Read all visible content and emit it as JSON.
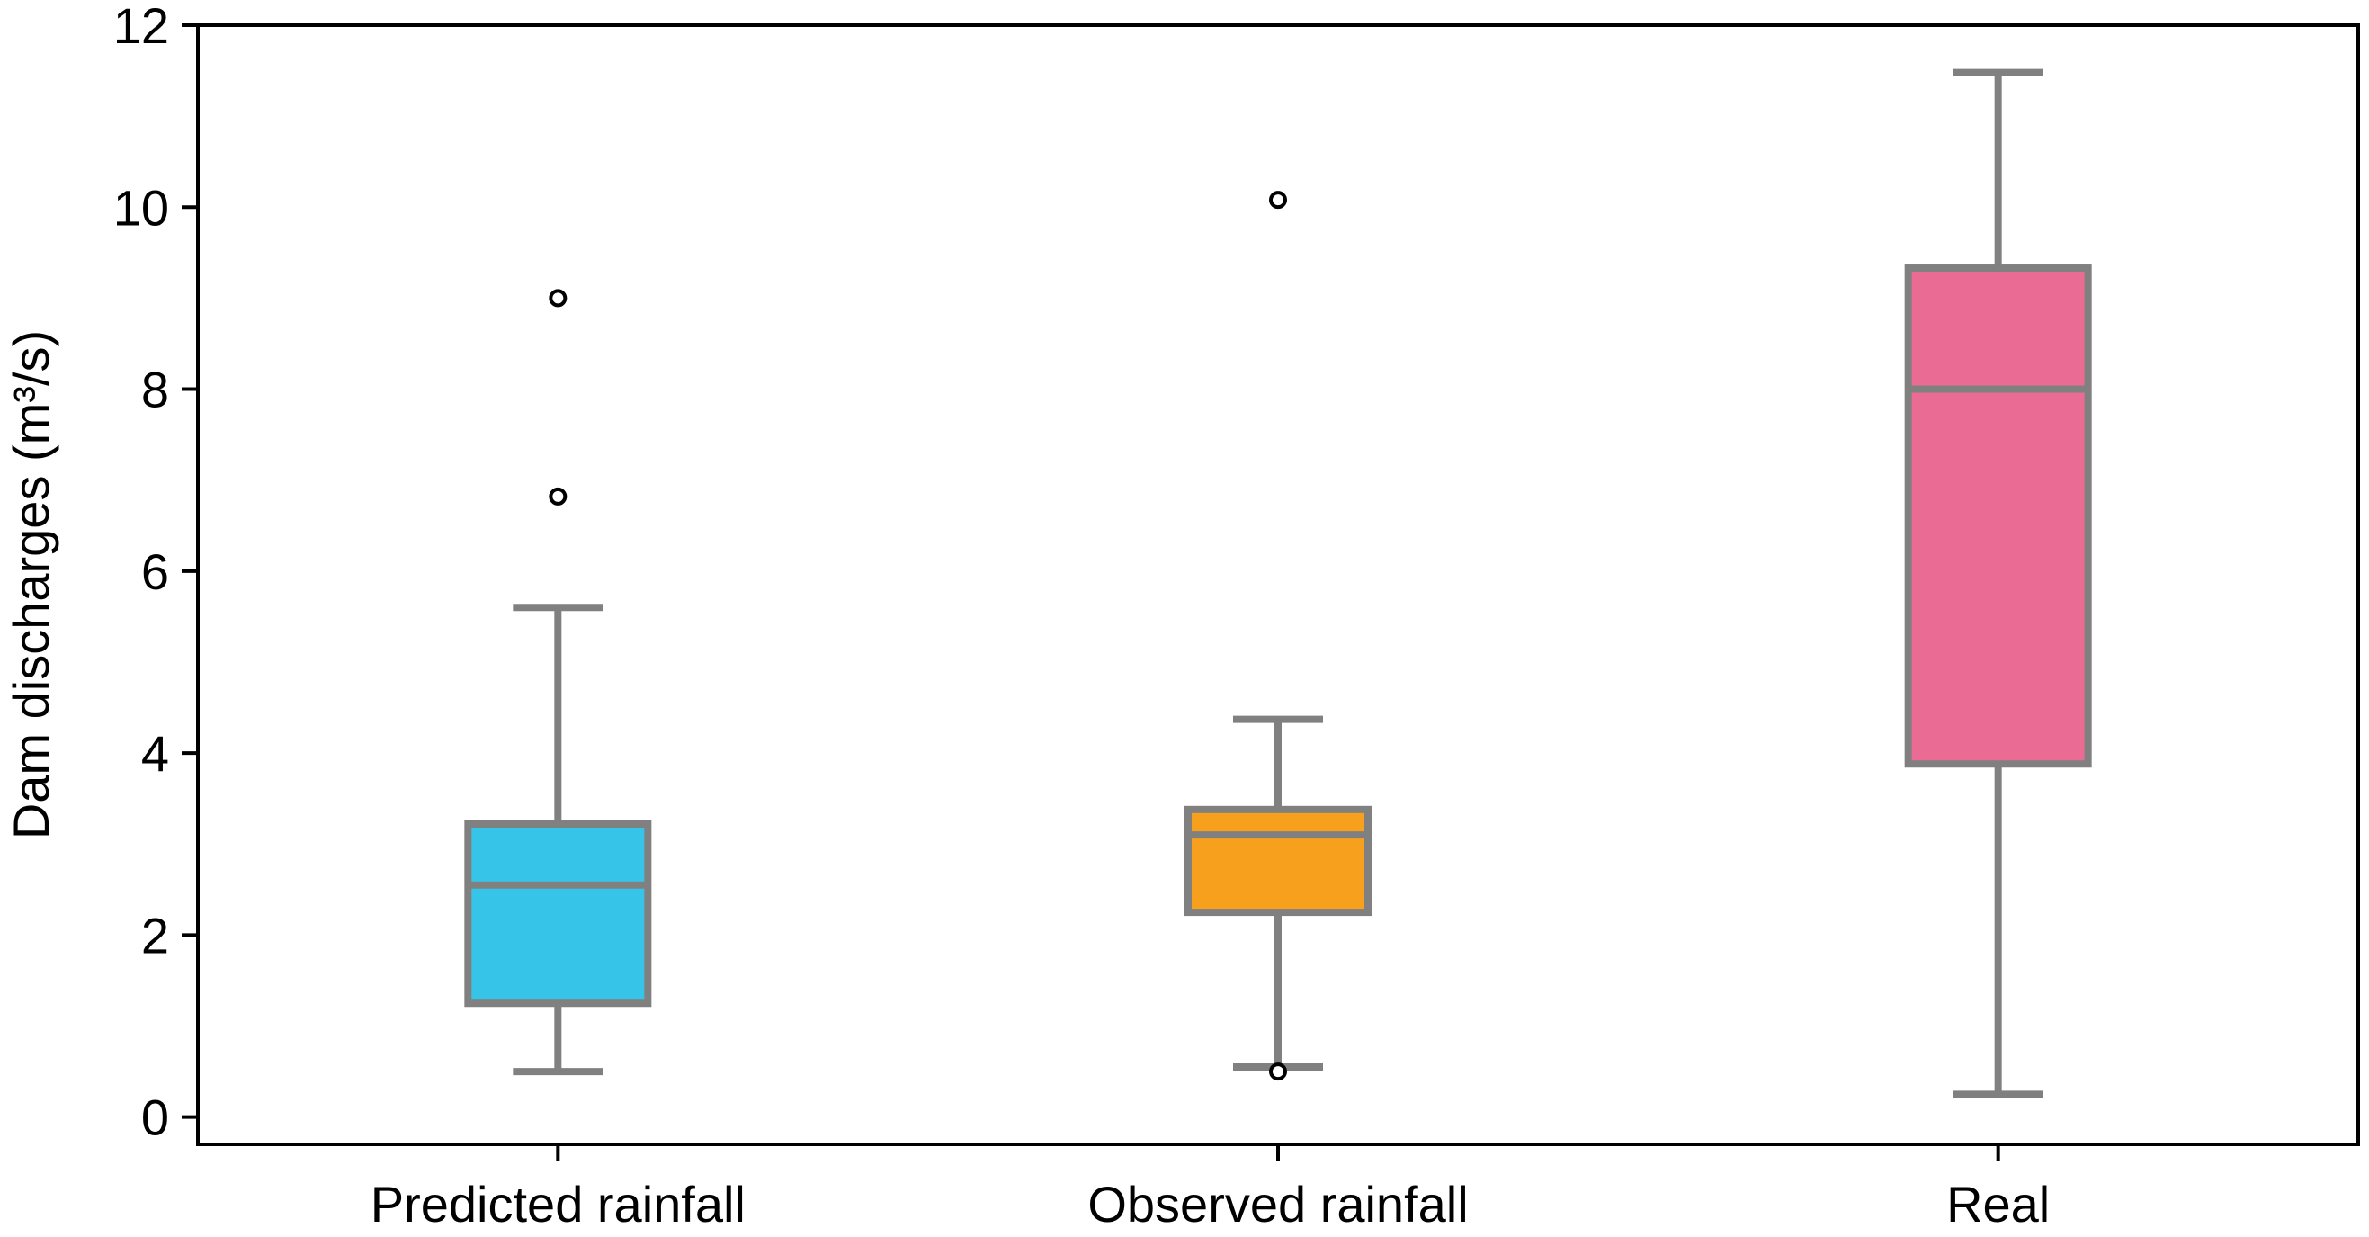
{
  "chart_data": {
    "type": "box",
    "title": "",
    "xlabel": "",
    "ylabel": "Dam discharges (m³/s)",
    "ylim": [
      -0.3,
      12.0
    ],
    "yticks": [
      0,
      2,
      4,
      6,
      8,
      10,
      12
    ],
    "grid": false,
    "categories": [
      "Predicted rainfall",
      "Observed rainfall",
      "Real"
    ],
    "boxes": [
      {
        "name": "Predicted rainfall",
        "color": "#36c5e8",
        "whisker_low": 0.5,
        "q1": 1.25,
        "median": 2.55,
        "q3": 3.22,
        "whisker_high": 5.6,
        "outliers": [
          6.82,
          9.0
        ]
      },
      {
        "name": "Observed rainfall",
        "color": "#f7a01e",
        "whisker_low": 0.55,
        "q1": 2.25,
        "median": 3.1,
        "q3": 3.38,
        "whisker_high": 4.37,
        "outliers": [
          0.5,
          10.08
        ]
      },
      {
        "name": "Real",
        "color": "#ea6b93",
        "whisker_low": 0.25,
        "q1": 3.88,
        "median": 8.0,
        "q3": 9.33,
        "whisker_high": 11.48,
        "outliers": []
      }
    ],
    "line_color": "#808080",
    "frame_color": "#000000"
  }
}
